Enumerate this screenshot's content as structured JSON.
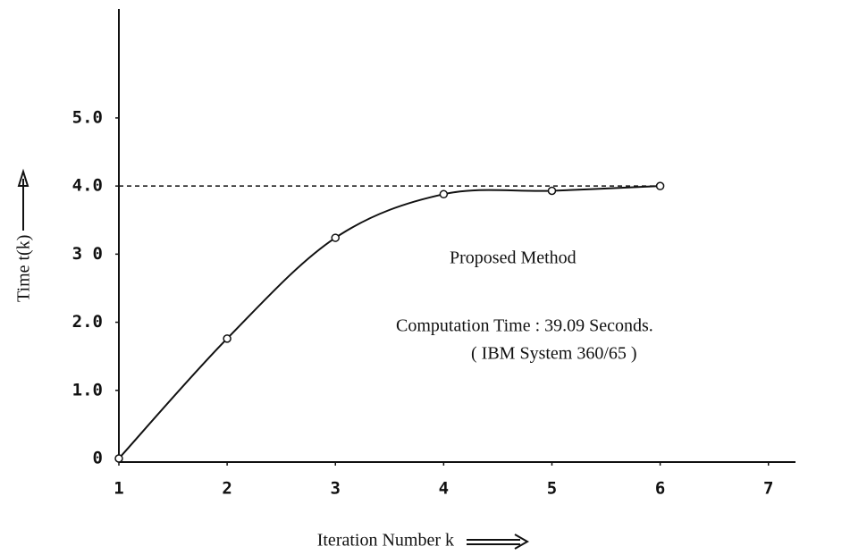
{
  "chart_data": {
    "type": "line",
    "x_label": "Iteration Number k",
    "y_label": "Time t(k)",
    "annotations": [
      "Proposed Method",
      "Computation Time : 39.09 Seconds.",
      "( IBM System 360/65 )"
    ],
    "x": [
      1,
      2,
      3,
      4,
      5,
      6
    ],
    "series": [
      {
        "color": "#111111",
        "values": [
          0,
          1.76,
          3.24,
          3.88,
          3.93,
          4.0
        ]
      }
    ],
    "reference_line": 4.0,
    "xlim": [
      1,
      7.25
    ],
    "ylim": [
      0,
      6.6
    ],
    "xticks": [
      1,
      2,
      3,
      4,
      5,
      6,
      7
    ],
    "yticks": [
      0,
      {
        "value": 1,
        "label": "1.0"
      },
      {
        "value": 2,
        "label": "2.0"
      },
      {
        "value": 3,
        "label": "3 0"
      },
      {
        "value": 4,
        "label": "4.0"
      },
      {
        "value": 5,
        "label": "5.0"
      }
    ]
  }
}
